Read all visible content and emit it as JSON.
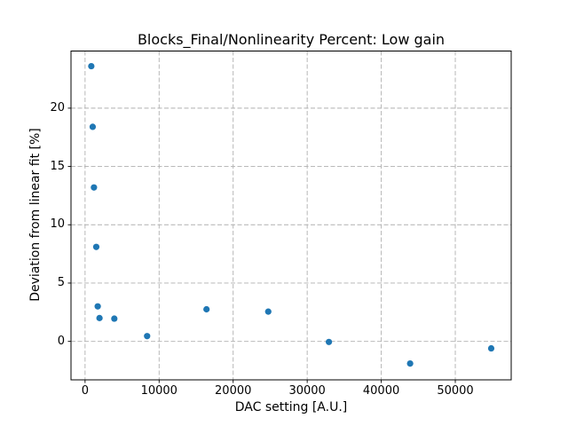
{
  "chart_data": {
    "type": "scatter",
    "title": "Blocks_Final/Nonlinearity Percent: Low gain",
    "xlabel": "DAC setting [A.U.]",
    "ylabel": "Deviation from linear fit [%]",
    "xlim": [
      -1900,
      57550
    ],
    "ylim": [
      -3.3,
      24.9
    ],
    "xticks": [
      0,
      10000,
      20000,
      30000,
      40000,
      50000
    ],
    "yticks": [
      0,
      5,
      10,
      15,
      20
    ],
    "grid": true,
    "grid_style": "dashed",
    "grid_color": "#b0b0b0",
    "marker": "circle",
    "marker_color": "#1f77b4",
    "series": [
      {
        "name": "nonlinearity",
        "x": [
          840,
          1030,
          1200,
          1510,
          1710,
          1950,
          3950,
          8380,
          16400,
          24740,
          32930,
          43900,
          54850
        ],
        "y": [
          23.6,
          18.4,
          13.2,
          8.1,
          3.0,
          2.0,
          1.95,
          0.45,
          2.75,
          2.55,
          -0.05,
          -1.9,
          -0.6
        ]
      }
    ]
  }
}
